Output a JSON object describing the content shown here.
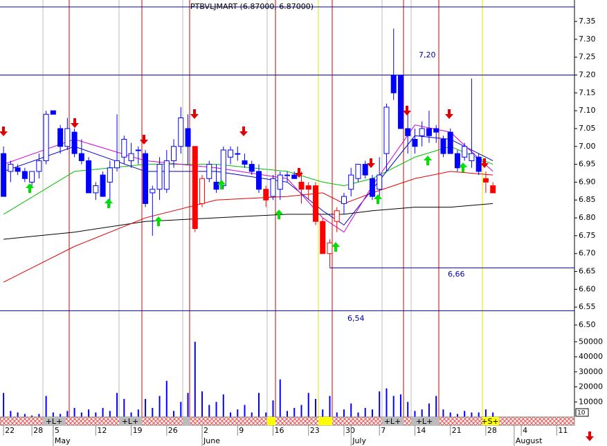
{
  "chart_data": {
    "type": "candlestick",
    "title": "PTBVLJMART (6.87000, 6.87000)",
    "xlim": [
      -0.5,
      80.5
    ],
    "ylim": [
      6.5,
      7.35
    ],
    "yticks": [
      {
        "value": 7.35,
        "label": "7.35"
      },
      {
        "value": 7.3,
        "label": "7.30"
      },
      {
        "value": 7.25,
        "label": "7.25"
      },
      {
        "value": 7.2,
        "label": "7.20"
      },
      {
        "value": 7.15,
        "label": "7.15"
      },
      {
        "value": 7.1,
        "label": "7.10"
      },
      {
        "value": 7.05,
        "label": "7.05"
      },
      {
        "value": 7,
        "label": "7.00"
      },
      {
        "value": 6.95,
        "label": "6.95"
      },
      {
        "value": 6.9,
        "label": "6.90"
      },
      {
        "value": 6.85,
        "label": "6.85"
      },
      {
        "value": 6.8,
        "label": "6.80"
      },
      {
        "value": 6.75,
        "label": "6.75"
      },
      {
        "value": 6.7,
        "label": "6.70"
      },
      {
        "value": 6.65,
        "label": "6.65"
      },
      {
        "value": 6.6,
        "label": "6.60"
      },
      {
        "value": 6.55,
        "label": "6.55"
      },
      {
        "value": 6.5,
        "label": "6.50"
      }
    ],
    "xticks": [
      {
        "value": 0,
        "label": "22"
      },
      {
        "value": 4,
        "label": "28"
      },
      {
        "value": 7,
        "label": "5"
      },
      {
        "value": 13,
        "label": "12"
      },
      {
        "value": 18,
        "label": "19"
      },
      {
        "value": 23,
        "label": "26"
      },
      {
        "value": 28,
        "label": "2"
      },
      {
        "value": 33,
        "label": "9"
      },
      {
        "value": 38,
        "label": "16"
      },
      {
        "value": 43,
        "label": "23"
      },
      {
        "value": 48,
        "label": "30"
      },
      {
        "value": 53,
        "label": "7"
      },
      {
        "value": 58,
        "label": "14"
      },
      {
        "value": 63,
        "label": "21"
      },
      {
        "value": 68,
        "label": "28"
      },
      {
        "value": 73,
        "label": "4"
      },
      {
        "value": 78,
        "label": "11"
      }
    ],
    "month_ticks": [
      {
        "value": 7,
        "label": "May"
      },
      {
        "value": 28,
        "label": "June"
      },
      {
        "value": 49,
        "label": "July"
      },
      {
        "value": 72,
        "label": "August"
      }
    ],
    "open": [
      6.98,
      6.93,
      6.94,
      6.93,
      6.9,
      6.93,
      6.96,
      7.1,
      7.05,
      7.0,
      7.04,
      6.98,
      6.96,
      6.87,
      6.92,
      6.9,
      6.94,
      6.97,
      6.96,
      6.99,
      6.98,
      6.87,
      6.88,
      6.88,
      6.96,
      7.0,
      7.05,
      7.0,
      6.84,
      6.91,
      6.9,
      6.89,
      6.97,
      6.98,
      6.96,
      6.95,
      6.93,
      6.88,
      6.86,
      6.88,
      6.92,
      6.92,
      6.9,
      6.89,
      6.89,
      6.79,
      6.7,
      6.79,
      6.84,
      6.88,
      6.91,
      6.95,
      6.91,
      6.88,
      6.98,
      7.2,
      7.2,
      7.05,
      7.02,
      7.03,
      7.05,
      7.05,
      7.02,
      7.04,
      6.98,
      6.97,
      6.96,
      6.97,
      6.91,
      6.89
    ],
    "high": [
      7.0,
      6.96,
      6.95,
      6.94,
      6.93,
      6.98,
      7.1,
      7.1,
      7.06,
      7.08,
      7.05,
      7.02,
      6.97,
      6.9,
      6.93,
      6.96,
      7.09,
      7.03,
      7.01,
      7.0,
      6.99,
      6.89,
      6.97,
      6.99,
      7.02,
      7.11,
      7.09,
      7.0,
      6.92,
      6.96,
      6.95,
      7.0,
      7.0,
      7.0,
      6.98,
      6.96,
      6.95,
      6.89,
      6.92,
      6.93,
      6.93,
      6.93,
      6.93,
      6.9,
      6.9,
      6.8,
      6.74,
      6.83,
      6.87,
      6.94,
      6.95,
      6.96,
      6.92,
      6.97,
      7.12,
      7.33,
      7.2,
      7.09,
      7.05,
      7.07,
      7.1,
      7.06,
      7.03,
      7.05,
      6.99,
      7.01,
      7.19,
      6.98,
      6.93,
      6.9
    ],
    "low": [
      6.86,
      6.9,
      6.92,
      6.9,
      6.89,
      6.91,
      6.95,
      7.09,
      6.98,
      6.99,
      6.97,
      6.95,
      6.87,
      6.85,
      6.86,
      6.83,
      6.93,
      6.95,
      6.94,
      6.95,
      6.83,
      6.75,
      6.85,
      6.87,
      6.94,
      6.98,
      6.95,
      6.76,
      6.83,
      6.9,
      6.87,
      6.88,
      6.95,
      6.96,
      6.94,
      6.92,
      6.87,
      6.83,
      6.85,
      6.85,
      6.9,
      6.91,
      6.84,
      6.85,
      6.78,
      6.7,
      6.66,
      6.76,
      6.81,
      6.86,
      6.9,
      6.91,
      6.85,
      6.86,
      6.93,
      7.13,
      7.05,
      6.98,
      6.98,
      7.0,
      7.01,
      7.01,
      6.97,
      6.98,
      6.93,
      6.96,
      6.94,
      6.92,
      6.87,
      6.87
    ],
    "close": [
      6.86,
      6.95,
      6.93,
      6.91,
      6.93,
      6.96,
      7.09,
      7.09,
      7.0,
      7.05,
      6.98,
      6.96,
      6.87,
      6.89,
      6.86,
      6.94,
      6.96,
      7.02,
      6.98,
      6.99,
      6.84,
      6.88,
      6.95,
      6.96,
      7.0,
      7.08,
      7.0,
      6.77,
      6.91,
      6.95,
      6.88,
      6.99,
      6.99,
      6.98,
      6.95,
      6.93,
      6.88,
      6.85,
      6.91,
      6.92,
      6.92,
      6.91,
      6.88,
      6.88,
      6.79,
      6.7,
      6.73,
      6.82,
      6.86,
      6.92,
      6.95,
      6.92,
      6.86,
      6.92,
      7.11,
      7.15,
      7.05,
      7.03,
      7.0,
      7.05,
      7.03,
      7.04,
      6.98,
      6.98,
      6.94,
      7.0,
      6.98,
      6.93,
      6.9,
      6.87
    ],
    "colors": [
      "#0000ff",
      "#0000ff",
      "#0000ff",
      "#0000ff",
      "#0000ff",
      "#0000ff",
      "#0000ff",
      "#0000ff",
      "#0000ff",
      "#0000ff",
      "#0000ff",
      "#0000ff",
      "#0000ff",
      "#0000ff",
      "#0000ff",
      "#0000ff",
      "#0000ff",
      "#0000ff",
      "#0000ff",
      "#0000ff",
      "#0000ff",
      "#0000ff",
      "#0000ff",
      "#0000ff",
      "#0000ff",
      "#0000ff",
      "#0000ff",
      "#ff0000",
      "#ff0000",
      "#0000ff",
      "#0000ff",
      "#0000ff",
      "#0000ff",
      "#0000ff",
      "#0000ff",
      "#0000ff",
      "#0000ff",
      "#ff0000",
      "#0000ff",
      "#0000ff",
      "#0000ff",
      "#0000ff",
      "#ff0000",
      "#ff0000",
      "#ff0000",
      "#ff0000",
      "#ff0000",
      "#ff0000",
      "#0000ff",
      "#0000ff",
      "#0000ff",
      "#0000ff",
      "#0000ff",
      "#0000ff",
      "#0000ff",
      "#0000ff",
      "#0000ff",
      "#0000ff",
      "#0000ff",
      "#0000ff",
      "#0000ff",
      "#0000ff",
      "#0000ff",
      "#0000ff",
      "#0000ff",
      "#0000ff",
      "#0000ff",
      "#0000ff",
      "#ff0000",
      "#ff0000"
    ],
    "moving_averages": {
      "x": [
        0,
        10,
        20,
        30,
        40,
        45,
        48,
        52,
        58,
        63,
        69
      ],
      "series": [
        {
          "color": "#000000",
          "values": [
            6.74,
            6.76,
            6.79,
            6.8,
            6.81,
            6.81,
            6.81,
            6.82,
            6.83,
            6.83,
            6.84
          ]
        },
        {
          "color": "#e00000",
          "values": [
            6.62,
            6.72,
            6.8,
            6.85,
            6.86,
            6.87,
            6.84,
            6.87,
            6.91,
            6.93,
            6.92
          ]
        },
        {
          "color": "#00c000",
          "values": [
            6.81,
            6.93,
            6.95,
            6.95,
            6.93,
            6.9,
            6.89,
            6.91,
            6.97,
            7.0,
            6.95
          ]
        },
        {
          "color": "#0000c0",
          "values": [
            6.93,
            7.0,
            6.93,
            6.93,
            6.9,
            6.82,
            6.78,
            6.88,
            7.03,
            7.02,
            6.96
          ]
        },
        {
          "color": "#d000d0",
          "values": [
            6.95,
            7.02,
            6.96,
            6.94,
            6.91,
            6.8,
            6.76,
            6.89,
            7.06,
            7.04,
            6.93
          ]
        }
      ]
    },
    "levels": [
      {
        "value": 7.2,
        "label": "7,20",
        "start": -0.5
      },
      {
        "value": 6.66,
        "label": "6,66",
        "start": 46
      },
      {
        "value": 6.54,
        "label": "6,54",
        "start": -0.5
      }
    ],
    "volume": {
      "color": "#0000ff",
      "ylim": [
        0,
        55000
      ],
      "yticks": [
        10000,
        20000,
        30000,
        40000,
        50000
      ],
      "values": [
        16000,
        4000,
        3000,
        2000,
        1000,
        2000,
        14000,
        3000,
        2000,
        4000,
        6000,
        3000,
        5000,
        3000,
        6000,
        4000,
        16000,
        12000,
        3000,
        5000,
        12000,
        6000,
        14000,
        24000,
        4000,
        10000,
        16000,
        50000,
        17000,
        8000,
        10000,
        15000,
        3000,
        5000,
        8000,
        3000,
        16000,
        3000,
        11000,
        25000,
        4000,
        6000,
        8000,
        16000,
        12000,
        5000,
        14000,
        3000,
        5000,
        9000,
        3000,
        6000,
        5000,
        17000,
        19000,
        14000,
        15000,
        10000,
        4000,
        5000,
        9000,
        14000,
        5000,
        3000,
        2000,
        4000,
        3000,
        3000,
        5000,
        3000
      ]
    },
    "signal_band": {
      "labels": [
        "+L+",
        "+L+",
        "+L+",
        "+L+",
        "+S+"
      ]
    },
    "corner_label": "10"
  }
}
